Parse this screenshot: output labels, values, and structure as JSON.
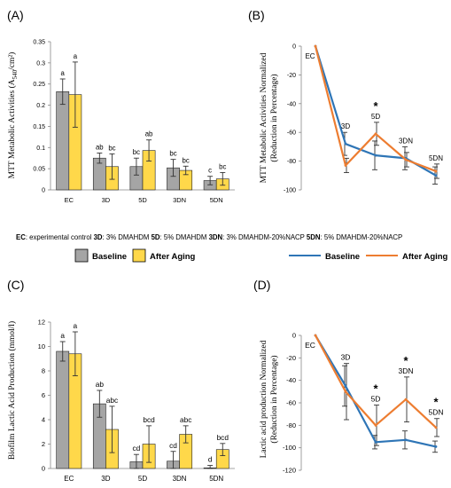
{
  "panels": {
    "A": {
      "label": "(A)",
      "ylabel": "MTT Metabolic Activities (A",
      "ylabel_sub": "540",
      "ylabel_tail": "/cm²)"
    },
    "B": {
      "label": "(B)",
      "ylabel_line1": "MTT Metabolic Activities Normalized",
      "ylabel_line2": "(Reduction in Percentage)"
    },
    "C": {
      "label": "(C)",
      "ylabel": "Biofilm Lactic Acid Production (mmol/l)"
    },
    "D": {
      "label": "(D)",
      "ylabel_line1": "Lactic acid production Normalized",
      "ylabel_line2": "(Reduction in Percentage)"
    }
  },
  "abbreviations": [
    {
      "key": "EC",
      "text": ": experimental control "
    },
    {
      "key": "3D",
      "text": ": 3% DMAHDM "
    },
    {
      "key": "5D",
      "text": ": 5% DMAHDM "
    },
    {
      "key": "3DN",
      "text": ": 3% DMAHDM-20%NACP "
    },
    {
      "key": "5DN",
      "text": ": 5% DMAHDM-20%NACP"
    }
  ],
  "legend_bar": {
    "baseline": "Baseline",
    "after": "After Aging"
  },
  "legend_line": {
    "baseline": "Baseline",
    "after": "After Aging"
  },
  "colors": {
    "baseline_bar": "#a5a5a5",
    "after_bar": "#ffd84a",
    "baseline_line": "#2e75b6",
    "after_line": "#ed7d31"
  },
  "chart_data": [
    {
      "panel": "A",
      "type": "bar",
      "categories": [
        "EC",
        "3D",
        "5D",
        "3DN",
        "5DN"
      ],
      "ylim": [
        0,
        0.35
      ],
      "yticks": [
        0,
        0.05,
        0.1,
        0.15,
        0.2,
        0.25,
        0.3,
        0.35
      ],
      "ytick_labels": [
        "0",
        "0.05",
        "0.1",
        "0.15",
        "0.2",
        "0.25",
        "0.3",
        "0.35"
      ],
      "series": [
        {
          "name": "Baseline",
          "values": [
            0.232,
            0.075,
            0.055,
            0.052,
            0.022
          ],
          "errors": [
            0.03,
            0.012,
            0.02,
            0.02,
            0.01
          ],
          "letters": [
            "a",
            "ab",
            "bc",
            "bc",
            "c"
          ]
        },
        {
          "name": "After Aging",
          "values": [
            0.225,
            0.055,
            0.093,
            0.046,
            0.026
          ],
          "errors": [
            0.077,
            0.03,
            0.025,
            0.01,
            0.015
          ],
          "letters": [
            "a",
            "bc",
            "ab",
            "bc",
            "bc"
          ]
        }
      ]
    },
    {
      "panel": "B",
      "type": "line",
      "x": [
        "EC",
        "3D",
        "5D",
        "3DN",
        "5DN"
      ],
      "ylim": [
        -100,
        0
      ],
      "yticks": [
        0,
        -20,
        -40,
        -60,
        -80,
        -100
      ],
      "ytick_labels": [
        "0",
        "-20",
        "-40",
        "-60",
        "-80",
        "-100"
      ],
      "series": [
        {
          "name": "Baseline",
          "values": [
            0,
            -68,
            -76,
            -78,
            -90
          ],
          "errors": [
            0,
            8,
            10,
            8,
            6
          ]
        },
        {
          "name": "After Aging",
          "values": [
            0,
            -83,
            -61,
            -79,
            -87
          ],
          "errors": [
            0,
            5,
            8,
            5,
            5
          ]
        }
      ],
      "point_labels": [
        "EC",
        "3D",
        "5D",
        "3DN",
        "5DN"
      ],
      "significance": [
        {
          "category": "5D",
          "mark": "*"
        }
      ]
    },
    {
      "panel": "C",
      "type": "bar",
      "categories": [
        "EC",
        "3D",
        "5D",
        "3DN",
        "5DN"
      ],
      "ylim": [
        0,
        12
      ],
      "yticks": [
        0,
        2,
        4,
        6,
        8,
        10,
        12
      ],
      "ytick_labels": [
        "0",
        "2",
        "4",
        "6",
        "8",
        "10",
        "12"
      ],
      "series": [
        {
          "name": "Baseline",
          "values": [
            9.6,
            5.3,
            0.55,
            0.6,
            0.05
          ],
          "errors": [
            0.8,
            1.1,
            0.6,
            0.8,
            0.2
          ],
          "letters": [
            "a",
            "ab",
            "cd",
            "cd",
            "d"
          ]
        },
        {
          "name": "After Aging",
          "values": [
            9.4,
            3.2,
            2.0,
            2.8,
            1.55
          ],
          "errors": [
            1.8,
            1.9,
            1.5,
            0.7,
            0.5
          ],
          "letters": [
            "a",
            "abc",
            "bcd",
            "abc",
            "bcd"
          ]
        }
      ]
    },
    {
      "panel": "D",
      "type": "line",
      "x": [
        "EC",
        "3D",
        "5D",
        "3DN",
        "5DN"
      ],
      "ylim": [
        -120,
        0
      ],
      "yticks": [
        0,
        -20,
        -40,
        -60,
        -80,
        -100,
        -120
      ],
      "ytick_labels": [
        "0",
        "-20",
        "-40",
        "-60",
        "-80",
        "-100",
        "-120"
      ],
      "series": [
        {
          "name": "Baseline",
          "values": [
            0,
            -45,
            -95,
            -93,
            -99
          ],
          "errors": [
            0,
            18,
            6,
            8,
            5
          ]
        },
        {
          "name": "After Aging",
          "values": [
            0,
            -50,
            -80,
            -57,
            -82
          ],
          "errors": [
            0,
            25,
            18,
            20,
            8
          ]
        }
      ],
      "point_labels": [
        "EC",
        "3D",
        "5D",
        "3DN",
        "5DN"
      ],
      "significance": [
        {
          "category": "5D",
          "mark": "*"
        },
        {
          "category": "3DN",
          "mark": "*"
        },
        {
          "category": "5DN",
          "mark": "*"
        }
      ]
    }
  ]
}
